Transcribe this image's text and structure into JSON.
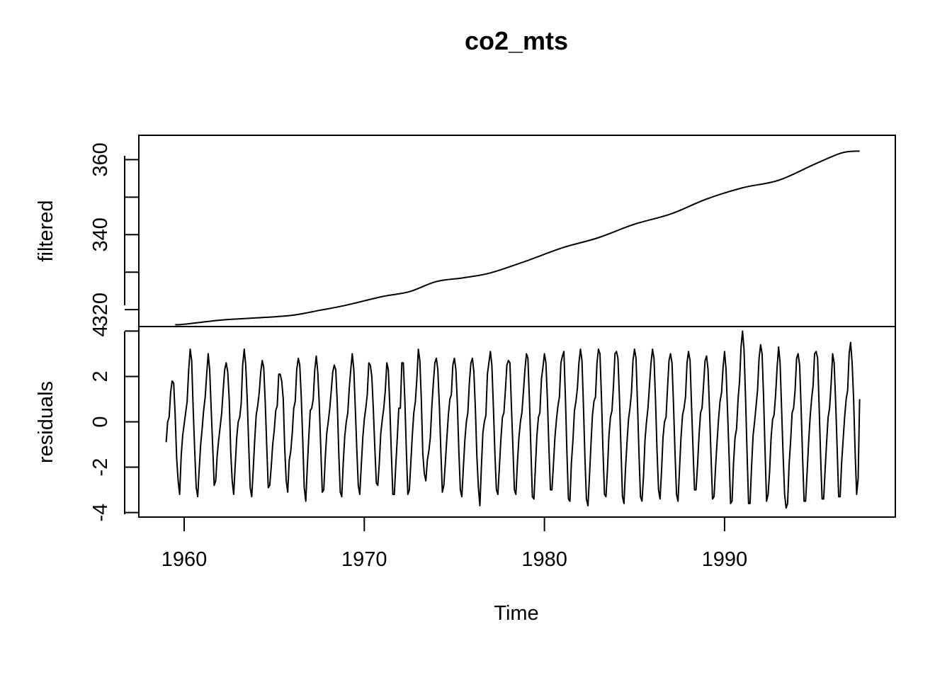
{
  "chart_data": {
    "type": "line",
    "title": "co2_mts",
    "xlabel": "Time",
    "x_start": 1959.0,
    "frequency": 12,
    "x_ticks": [
      1960,
      1970,
      1980,
      1990
    ],
    "x_tick_labels": [
      "1960",
      "1970",
      "1980",
      "1990"
    ],
    "panels": [
      {
        "name": "filtered",
        "ylabel": "filtered",
        "ylim": [
          315.5,
          366.5
        ],
        "y_ticks": [
          320,
          330,
          340,
          350,
          360
        ],
        "y_tick_labels": [
          "320",
          "",
          "340",
          "",
          "360"
        ],
        "anchors_x": [
          1959.5,
          1960.0,
          1962.0,
          1964.0,
          1966.0,
          1967.5,
          1969.0,
          1971.0,
          1972.5,
          1974.0,
          1975.5,
          1977.0,
          1979.0,
          1981.0,
          1983.0,
          1985.0,
          1987.0,
          1989.0,
          1991.0,
          1993.0,
          1995.0,
          1996.5,
          1997.5
        ],
        "anchors_y": [
          316.0,
          316.1,
          317.2,
          317.8,
          318.5,
          319.8,
          321.2,
          323.5,
          324.8,
          327.5,
          328.5,
          329.8,
          333.0,
          336.5,
          339.2,
          342.8,
          345.5,
          349.5,
          352.5,
          354.5,
          358.8,
          361.8,
          362.3
        ]
      },
      {
        "name": "residuals",
        "ylabel": "residuals",
        "ylim": [
          -4.2,
          4.2
        ],
        "y_ticks": [
          -4,
          -2,
          0,
          2,
          4
        ],
        "y_tick_labels": [
          "-4",
          "-2",
          "0",
          "2",
          "4"
        ],
        "values": [
          -0.9,
          0.0,
          0.2,
          1.3,
          1.8,
          1.7,
          0.3,
          -1.6,
          -2.6,
          -3.2,
          -1.5,
          -0.6,
          -0.1,
          0.4,
          0.9,
          2.3,
          3.2,
          2.7,
          0.6,
          -1.2,
          -2.9,
          -3.3,
          -2.1,
          -1.0,
          -0.3,
          0.5,
          1.1,
          2.1,
          3.0,
          2.3,
          0.6,
          -1.1,
          -2.8,
          -2.6,
          -1.5,
          -0.8,
          -0.2,
          0.4,
          1.4,
          2.3,
          2.6,
          2.2,
          1.0,
          -1.3,
          -2.6,
          -3.2,
          -1.9,
          -0.7,
          0.0,
          0.2,
          0.8,
          2.5,
          3.2,
          2.5,
          1.0,
          -1.0,
          -2.9,
          -3.3,
          -2.1,
          -0.8,
          0.3,
          0.7,
          1.3,
          2.2,
          2.7,
          2.4,
          0.9,
          -1.1,
          -2.9,
          -2.8,
          -2.0,
          -1.0,
          -0.4,
          0.5,
          0.7,
          2.1,
          2.1,
          1.8,
          1.0,
          -1.2,
          -2.6,
          -3.1,
          -1.7,
          -1.3,
          -0.5,
          0.6,
          0.9,
          2.3,
          2.8,
          2.5,
          1.1,
          -0.8,
          -2.9,
          -3.5,
          -2.0,
          -0.7,
          0.5,
          0.6,
          1.0,
          2.3,
          2.9,
          2.2,
          0.8,
          -1.1,
          -3.1,
          -3.0,
          -1.6,
          -0.5,
          0.0,
          0.6,
          1.4,
          2.2,
          2.5,
          2.3,
          0.8,
          -1.4,
          -3.1,
          -3.3,
          -1.8,
          -0.6,
          0.0,
          0.4,
          1.5,
          2.3,
          3.0,
          2.3,
          0.6,
          -1.2,
          -2.8,
          -3.2,
          -1.9,
          -0.7,
          0.1,
          0.6,
          1.2,
          2.6,
          2.5,
          2.0,
          0.6,
          -1.1,
          -2.7,
          -2.8,
          -1.8,
          -0.5,
          0.1,
          0.6,
          1.4,
          2.6,
          2.3,
          0.7,
          -1.3,
          -3.2,
          -3.2,
          -1.9,
          -0.7,
          0.6,
          0.6,
          2.6,
          2.6,
          1.0,
          -1.2,
          -3.2,
          -3.0,
          -1.8,
          -0.6,
          0.4,
          0.9,
          1.9,
          3.2,
          2.7,
          1.0,
          -1.4,
          -2.3,
          -2.6,
          -1.7,
          -1.3,
          -0.7,
          0.7,
          1.7,
          2.6,
          2.8,
          2.3,
          0.7,
          -1.3,
          -3.1,
          -2.8,
          -1.8,
          -0.7,
          0.3,
          1.0,
          1.2,
          2.5,
          2.8,
          2.3,
          0.8,
          -1.3,
          -3.0,
          -3.3,
          -2.0,
          -0.8,
          0.0,
          0.4,
          1.7,
          2.6,
          2.8,
          2.2,
          0.6,
          -1.5,
          -2.9,
          -3.7,
          -2.0,
          -0.5,
          0.0,
          0.3,
          2.1,
          2.6,
          3.1,
          2.5,
          0.7,
          -1.4,
          -3.0,
          -3.2,
          -2.0,
          -0.8,
          0.2,
          0.4,
          1.4,
          2.5,
          2.7,
          2.6,
          0.7,
          -1.1,
          -3.0,
          -3.2,
          -1.8,
          -0.7,
          0.0,
          0.4,
          1.3,
          2.3,
          3.0,
          2.8,
          1.0,
          -1.2,
          -3.3,
          -3.4,
          -2.0,
          -0.6,
          0.2,
          0.4,
          1.9,
          2.4,
          3.0,
          2.6,
          1.0,
          -1.2,
          -3.0,
          -3.0,
          -1.9,
          -0.7,
          0.1,
          0.7,
          1.1,
          2.6,
          2.9,
          3.1,
          1.0,
          -1.4,
          -3.4,
          -3.5,
          -1.8,
          -0.8,
          0.5,
          0.9,
          1.5,
          2.6,
          3.2,
          2.7,
          0.7,
          -1.6,
          -3.4,
          -3.7,
          -2.4,
          -1.0,
          0.3,
          0.9,
          1.1,
          2.6,
          3.2,
          3.0,
          1.1,
          -1.2,
          -3.2,
          -3.3,
          -2.1,
          -0.6,
          0.2,
          0.5,
          1.6,
          3.0,
          3.1,
          2.8,
          1.0,
          -1.2,
          -3.3,
          -3.6,
          -2.1,
          -0.9,
          0.1,
          0.6,
          1.3,
          2.7,
          3.2,
          2.8,
          0.8,
          -1.4,
          -3.3,
          -3.5,
          -2.4,
          -0.8,
          0.0,
          0.6,
          1.6,
          2.6,
          3.2,
          2.8,
          1.0,
          -1.2,
          -3.0,
          -3.4,
          -2.2,
          -0.7,
          0.0,
          0.2,
          1.5,
          2.7,
          3.0,
          2.6,
          0.8,
          -1.4,
          -3.2,
          -3.5,
          -2.1,
          -0.7,
          0.3,
          0.6,
          1.1,
          2.6,
          3.1,
          2.7,
          0.7,
          -1.2,
          -3.0,
          -3.0,
          -1.9,
          -0.6,
          0.4,
          0.6,
          1.6,
          2.7,
          2.9,
          2.3,
          0.5,
          -1.5,
          -3.4,
          -3.3,
          -2.0,
          -0.9,
          0.1,
          0.9,
          1.3,
          2.4,
          3.1,
          2.3,
          0.5,
          -1.5,
          -3.6,
          -3.5,
          -1.8,
          -0.7,
          -0.3,
          1.0,
          1.8,
          3.3,
          4.0,
          3.2,
          1.0,
          -1.4,
          -3.6,
          -3.6,
          -2.0,
          -0.6,
          0.0,
          0.7,
          1.4,
          2.8,
          3.4,
          3.0,
          1.1,
          -1.3,
          -3.5,
          -3.2,
          -2.2,
          -0.7,
          0.1,
          0.3,
          1.2,
          2.4,
          3.3,
          2.6,
          0.6,
          -1.4,
          -3.2,
          -3.8,
          -3.6,
          -1.9,
          -0.9,
          0.4,
          0.6,
          1.4,
          2.8,
          3.0,
          2.5,
          0.6,
          -1.6,
          -3.5,
          -3.5,
          -2.2,
          -0.9,
          0.2,
          1.0,
          1.6,
          3.0,
          3.1,
          2.8,
          0.7,
          -1.5,
          -3.4,
          -3.4,
          -2.1,
          -0.9,
          0.2,
          0.6,
          1.7,
          3.0,
          2.6,
          0.9,
          -1.1,
          -3.3,
          -3.3,
          -1.8,
          -0.8,
          0.2,
          1.0,
          1.4,
          3.0,
          3.5,
          2.6,
          1.0,
          -1.4,
          -3.2,
          -2.5,
          1.0
        ]
      }
    ]
  }
}
